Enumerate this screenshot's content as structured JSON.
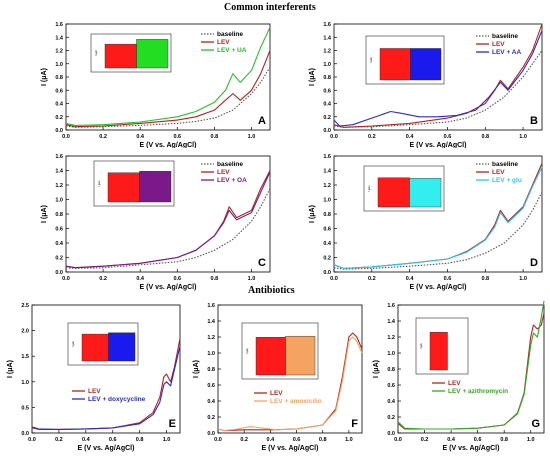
{
  "sections": {
    "top": "Common interferents",
    "bottom": "Antibiotics"
  },
  "colors": {
    "baseline": "#555555",
    "lev": "#b22222",
    "inset_lev": "#ff1a1a"
  },
  "chart_data": [
    {
      "panel": "A",
      "type": "line",
      "xlabel": "E (V vs. Ag/AgCl)",
      "ylabel": "I (μA)",
      "xlim": [
        0.0,
        1.1
      ],
      "ylim": [
        0.0,
        1.6
      ],
      "xticks": [
        "0.0",
        "0.2",
        "0.4",
        "0.6",
        "0.8",
        "1.0"
      ],
      "xtick_vals": [
        0,
        0.2,
        0.4,
        0.6,
        0.8,
        1.0
      ],
      "yticks": [
        "0.0",
        "0.2",
        "0.4",
        "0.6",
        "0.8",
        "1.0",
        "1.2",
        "1.4",
        "1.6"
      ],
      "ytick_vals": [
        0,
        0.2,
        0.4,
        0.6,
        0.8,
        1.0,
        1.2,
        1.4,
        1.6
      ],
      "legend_position": "top-right",
      "series": [
        {
          "name": "baseline",
          "color": "#555555",
          "dashed": true,
          "x": [
            0.0,
            0.05,
            0.2,
            0.4,
            0.6,
            0.7,
            0.8,
            0.9,
            1.0,
            1.05,
            1.1
          ],
          "y": [
            0.06,
            0.04,
            0.05,
            0.07,
            0.1,
            0.13,
            0.18,
            0.3,
            0.55,
            0.72,
            0.95
          ]
        },
        {
          "name": "LEV",
          "color": "#b22222",
          "x": [
            0.0,
            0.05,
            0.2,
            0.4,
            0.6,
            0.7,
            0.8,
            0.86,
            0.9,
            0.94,
            1.0,
            1.05,
            1.1
          ],
          "y": [
            0.08,
            0.05,
            0.06,
            0.1,
            0.15,
            0.2,
            0.3,
            0.45,
            0.55,
            0.45,
            0.6,
            0.85,
            1.2
          ]
        },
        {
          "name": "LEV + UA",
          "color": "#22c422",
          "x": [
            0.0,
            0.05,
            0.2,
            0.4,
            0.6,
            0.7,
            0.8,
            0.86,
            0.9,
            0.94,
            1.0,
            1.05,
            1.1
          ],
          "y": [
            0.1,
            0.07,
            0.08,
            0.12,
            0.2,
            0.28,
            0.42,
            0.6,
            0.85,
            0.72,
            0.9,
            1.25,
            1.55
          ]
        }
      ],
      "inset": {
        "bars": [
          {
            "label": "LEV",
            "value": 1.0,
            "color": "#ff1a1a"
          },
          {
            "label": "LEV + UA",
            "value": 1.2,
            "color": "#22dd22"
          }
        ]
      }
    },
    {
      "panel": "B",
      "type": "line",
      "xlabel": "E (V vs. Ag/AgCl)",
      "ylabel": "I (μA)",
      "xlim": [
        0.0,
        1.1
      ],
      "ylim": [
        0.0,
        1.6
      ],
      "xticks": [
        "0.0",
        "0.2",
        "0.4",
        "0.6",
        "0.8",
        "1.0"
      ],
      "xtick_vals": [
        0,
        0.2,
        0.4,
        0.6,
        0.8,
        1.0
      ],
      "yticks": [
        "0.0",
        "0.2",
        "0.4",
        "0.6",
        "0.8",
        "1.0",
        "1.2",
        "1.4",
        "1.6"
      ],
      "ytick_vals": [
        0,
        0.2,
        0.4,
        0.6,
        0.8,
        1.0,
        1.2,
        1.4,
        1.6
      ],
      "legend_position": "top-right",
      "series": [
        {
          "name": "baseline",
          "color": "#555555",
          "dashed": true,
          "x": [
            0.0,
            0.05,
            0.2,
            0.4,
            0.6,
            0.7,
            0.8,
            0.9,
            1.0,
            1.05,
            1.1
          ],
          "y": [
            0.06,
            0.04,
            0.05,
            0.08,
            0.12,
            0.18,
            0.3,
            0.5,
            0.8,
            1.0,
            1.2
          ]
        },
        {
          "name": "LEV",
          "color": "#b22222",
          "x": [
            0.0,
            0.05,
            0.2,
            0.4,
            0.6,
            0.7,
            0.8,
            0.85,
            0.88,
            0.92,
            1.0,
            1.05,
            1.1
          ],
          "y": [
            0.08,
            0.04,
            0.06,
            0.1,
            0.18,
            0.25,
            0.4,
            0.6,
            0.75,
            0.62,
            0.95,
            1.2,
            1.6
          ]
        },
        {
          "name": "LEV + AA",
          "color": "#2a2acc",
          "x": [
            0.0,
            0.03,
            0.1,
            0.2,
            0.3,
            0.36,
            0.45,
            0.55,
            0.65,
            0.75,
            0.82,
            0.88,
            0.92,
            1.0,
            1.05,
            1.1
          ],
          "y": [
            0.15,
            0.06,
            0.08,
            0.18,
            0.28,
            0.25,
            0.2,
            0.2,
            0.22,
            0.3,
            0.5,
            0.72,
            0.6,
            0.9,
            1.15,
            1.5
          ]
        }
      ],
      "inset": {
        "bars": [
          {
            "label": "LEV",
            "value": 1.0,
            "color": "#ff1a1a"
          },
          {
            "label": "LEV + AA",
            "value": 1.0,
            "color": "#1a1aee"
          }
        ]
      }
    },
    {
      "panel": "C",
      "type": "line",
      "xlabel": "E (V vs. Ag/AgCl)",
      "ylabel": "I (μA)",
      "xlim": [
        0.0,
        1.1
      ],
      "ylim": [
        0.0,
        1.6
      ],
      "xticks": [
        "0.0",
        "0.2",
        "0.4",
        "0.6",
        "0.8",
        "1.0"
      ],
      "xtick_vals": [
        0,
        0.2,
        0.4,
        0.6,
        0.8,
        1.0
      ],
      "yticks": [
        "0.0",
        "0.2",
        "0.4",
        "0.6",
        "0.8",
        "1.0",
        "1.2",
        "1.4",
        "1.6"
      ],
      "ytick_vals": [
        0,
        0.2,
        0.4,
        0.6,
        0.8,
        1.0,
        1.2,
        1.4,
        1.6
      ],
      "legend_position": "top-right",
      "series": [
        {
          "name": "baseline",
          "color": "#555555",
          "dashed": true,
          "x": [
            0.0,
            0.05,
            0.2,
            0.4,
            0.6,
            0.7,
            0.8,
            0.9,
            1.0,
            1.05,
            1.1
          ],
          "y": [
            0.06,
            0.05,
            0.06,
            0.1,
            0.14,
            0.2,
            0.3,
            0.45,
            0.7,
            0.9,
            1.15
          ]
        },
        {
          "name": "LEV",
          "color": "#b22222",
          "x": [
            0.0,
            0.05,
            0.2,
            0.4,
            0.6,
            0.7,
            0.8,
            0.85,
            0.88,
            0.92,
            1.0,
            1.05,
            1.1
          ],
          "y": [
            0.08,
            0.06,
            0.08,
            0.12,
            0.2,
            0.3,
            0.5,
            0.7,
            0.9,
            0.75,
            0.85,
            1.15,
            1.4
          ]
        },
        {
          "name": "LEV + OA",
          "color": "#7a1a8a",
          "x": [
            0.0,
            0.05,
            0.2,
            0.4,
            0.6,
            0.7,
            0.8,
            0.85,
            0.88,
            0.92,
            1.0,
            1.05,
            1.1
          ],
          "y": [
            0.08,
            0.06,
            0.08,
            0.12,
            0.2,
            0.3,
            0.5,
            0.68,
            0.85,
            0.72,
            0.82,
            1.1,
            1.38
          ]
        }
      ],
      "inset": {
        "bars": [
          {
            "label": "LEV",
            "value": 1.0,
            "color": "#ff1a1a"
          },
          {
            "label": "LEV + OA",
            "value": 1.05,
            "color": "#7a1a8a"
          }
        ]
      }
    },
    {
      "panel": "D",
      "type": "line",
      "xlabel": "E (V vs. Ag/AgCl)",
      "ylabel": "I (μA)",
      "xlim": [
        0.0,
        1.1
      ],
      "ylim": [
        0.0,
        1.6
      ],
      "xticks": [
        "0.0",
        "0.2",
        "0.4",
        "0.6",
        "0.8",
        "1.0"
      ],
      "xtick_vals": [
        0,
        0.2,
        0.4,
        0.6,
        0.8,
        1.0
      ],
      "yticks": [
        "0.0",
        "0.2",
        "0.4",
        "0.6",
        "0.8",
        "1.0",
        "1.2",
        "1.4",
        "1.6"
      ],
      "ytick_vals": [
        0,
        0.2,
        0.4,
        0.6,
        0.8,
        1.0,
        1.2,
        1.4,
        1.6
      ],
      "legend_position": "top-right",
      "series": [
        {
          "name": "baseline",
          "color": "#555555",
          "dashed": true,
          "x": [
            0.0,
            0.05,
            0.2,
            0.4,
            0.6,
            0.7,
            0.8,
            0.9,
            1.0,
            1.05,
            1.1
          ],
          "y": [
            0.06,
            0.04,
            0.05,
            0.08,
            0.12,
            0.17,
            0.26,
            0.4,
            0.65,
            0.85,
            1.1
          ]
        },
        {
          "name": "LEV",
          "color": "#b22222",
          "x": [
            0.0,
            0.05,
            0.2,
            0.4,
            0.6,
            0.7,
            0.8,
            0.85,
            0.88,
            0.92,
            1.0,
            1.05,
            1.1
          ],
          "y": [
            0.1,
            0.05,
            0.07,
            0.12,
            0.18,
            0.28,
            0.45,
            0.65,
            0.85,
            0.7,
            0.9,
            1.2,
            1.5
          ]
        },
        {
          "name": "LEV + glu",
          "color": "#29c8e8",
          "x": [
            0.0,
            0.05,
            0.2,
            0.4,
            0.6,
            0.7,
            0.8,
            0.85,
            0.88,
            0.92,
            1.0,
            1.05,
            1.1
          ],
          "y": [
            0.1,
            0.05,
            0.07,
            0.12,
            0.18,
            0.27,
            0.44,
            0.62,
            0.82,
            0.68,
            0.88,
            1.18,
            1.45
          ]
        }
      ],
      "inset": {
        "bars": [
          {
            "label": "LEV",
            "value": 1.0,
            "color": "#ff1a1a"
          },
          {
            "label": "LEV + glu",
            "value": 0.98,
            "color": "#33eeee"
          }
        ]
      }
    },
    {
      "panel": "E",
      "type": "line",
      "xlabel": "E (V vs. Ag/AgCl)",
      "ylabel": "I (μA)",
      "xlim": [
        0.0,
        1.1
      ],
      "ylim": [
        0.0,
        2.5
      ],
      "xticks": [
        "0.0",
        "0.2",
        "0.4",
        "0.6",
        "0.8",
        "1.0"
      ],
      "xtick_vals": [
        0,
        0.2,
        0.4,
        0.6,
        0.8,
        1.0
      ],
      "yticks": [
        "0.0",
        "0.5",
        "1.0",
        "1.5",
        "2.0",
        "2.5"
      ],
      "ytick_vals": [
        0,
        0.5,
        1.0,
        1.5,
        2.0,
        2.5
      ],
      "legend_position": "bottom-left",
      "series": [
        {
          "name": "LEV",
          "color": "#b22222",
          "x": [
            0.0,
            0.05,
            0.2,
            0.4,
            0.6,
            0.8,
            0.9,
            0.95,
            0.98,
            1.0,
            1.03,
            1.06,
            1.1
          ],
          "y": [
            0.1,
            0.07,
            0.07,
            0.08,
            0.1,
            0.2,
            0.4,
            0.7,
            1.1,
            1.15,
            1.0,
            1.3,
            1.85
          ]
        },
        {
          "name": "LEV + doxycycline",
          "color": "#2a2acc",
          "x": [
            0.0,
            0.05,
            0.2,
            0.4,
            0.6,
            0.8,
            0.9,
            0.95,
            0.98,
            1.0,
            1.03,
            1.06,
            1.1
          ],
          "y": [
            0.12,
            0.08,
            0.07,
            0.08,
            0.1,
            0.18,
            0.36,
            0.6,
            0.95,
            1.0,
            0.92,
            1.25,
            1.7
          ]
        }
      ],
      "inset": {
        "bars": [
          {
            "label": "LEV",
            "value": 1.0,
            "color": "#ff1a1a"
          },
          {
            "label": "LEV + doxycycline",
            "value": 1.05,
            "color": "#1a1aee"
          }
        ]
      }
    },
    {
      "panel": "F",
      "type": "line",
      "xlabel": "E (V vs. Ag/AgCl)",
      "ylabel": "I (μA)",
      "xlim": [
        0.0,
        1.1
      ],
      "ylim": [
        0.0,
        1.6
      ],
      "xticks": [
        "0.0",
        "0.2",
        "0.4",
        "0.6",
        "0.8",
        "1.0"
      ],
      "xtick_vals": [
        0,
        0.2,
        0.4,
        0.6,
        0.8,
        1.0
      ],
      "yticks": [
        "0.0",
        "0.2",
        "0.4",
        "0.6",
        "0.8",
        "1.0",
        "1.2",
        "1.4",
        "1.6"
      ],
      "ytick_vals": [
        0,
        0.2,
        0.4,
        0.6,
        0.8,
        1.0,
        1.2,
        1.4,
        1.6
      ],
      "legend_position": "bottom-left",
      "series": [
        {
          "name": "LEV",
          "color": "#b22222",
          "x": [
            0.0,
            0.05,
            0.2,
            0.4,
            0.6,
            0.8,
            0.9,
            0.95,
            1.0,
            1.03,
            1.06,
            1.1
          ],
          "y": [
            0.05,
            0.03,
            0.04,
            0.04,
            0.05,
            0.1,
            0.3,
            0.7,
            1.2,
            1.25,
            1.2,
            1.05
          ]
        },
        {
          "name": "LEV + amoxicilin",
          "color": "#f4a460",
          "x": [
            0.0,
            0.05,
            0.15,
            0.25,
            0.35,
            0.45,
            0.6,
            0.8,
            0.9,
            0.95,
            1.0,
            1.03,
            1.06,
            1.1
          ],
          "y": [
            0.05,
            0.03,
            0.05,
            0.08,
            0.06,
            0.04,
            0.05,
            0.1,
            0.28,
            0.65,
            1.15,
            1.2,
            1.15,
            1.0
          ]
        }
      ],
      "inset": {
        "bars": [
          {
            "label": "LEV",
            "value": 1.0,
            "color": "#ff1a1a"
          },
          {
            "label": "LEV + amoxicilin",
            "value": 1.03,
            "color": "#f4a460"
          }
        ]
      }
    },
    {
      "panel": "G",
      "type": "line",
      "xlabel": "E (V vs. Ag/AgCl)",
      "ylabel": "I (μA)",
      "xlim": [
        0.0,
        1.1
      ],
      "ylim": [
        0.0,
        1.6
      ],
      "xticks": [
        "0.0",
        "0.2",
        "0.4",
        "0.6",
        "0.8",
        "1.0"
      ],
      "xtick_vals": [
        0,
        0.2,
        0.4,
        0.6,
        0.8,
        1.0
      ],
      "yticks": [
        "0.0",
        "0.2",
        "0.4",
        "0.6",
        "0.8",
        "1.0",
        "1.2",
        "1.4",
        "1.6"
      ],
      "ytick_vals": [
        0,
        0.2,
        0.4,
        0.6,
        0.8,
        1.0,
        1.2,
        1.4,
        1.6
      ],
      "legend_position": "bottom-left",
      "series": [
        {
          "name": "LEV",
          "color": "#b22222",
          "x": [
            0.0,
            0.05,
            0.2,
            0.4,
            0.6,
            0.8,
            0.9,
            0.95,
            1.0,
            1.02,
            1.05,
            1.08,
            1.1
          ],
          "y": [
            0.12,
            0.05,
            0.05,
            0.05,
            0.06,
            0.1,
            0.25,
            0.5,
            1.2,
            1.35,
            1.3,
            1.35,
            1.5
          ]
        },
        {
          "name": "LEV + azithromycin",
          "color": "#33aa22",
          "x": [
            0.0,
            0.05,
            0.2,
            0.4,
            0.6,
            0.8,
            0.9,
            0.95,
            1.0,
            1.02,
            1.05,
            1.08,
            1.1
          ],
          "y": [
            0.14,
            0.06,
            0.05,
            0.05,
            0.06,
            0.1,
            0.24,
            0.48,
            1.1,
            1.25,
            1.2,
            1.45,
            1.65
          ]
        }
      ],
      "inset": {
        "bars": [
          {
            "label": "LEV",
            "value": 1.0,
            "color": "#ff1a1a"
          }
        ]
      }
    }
  ]
}
